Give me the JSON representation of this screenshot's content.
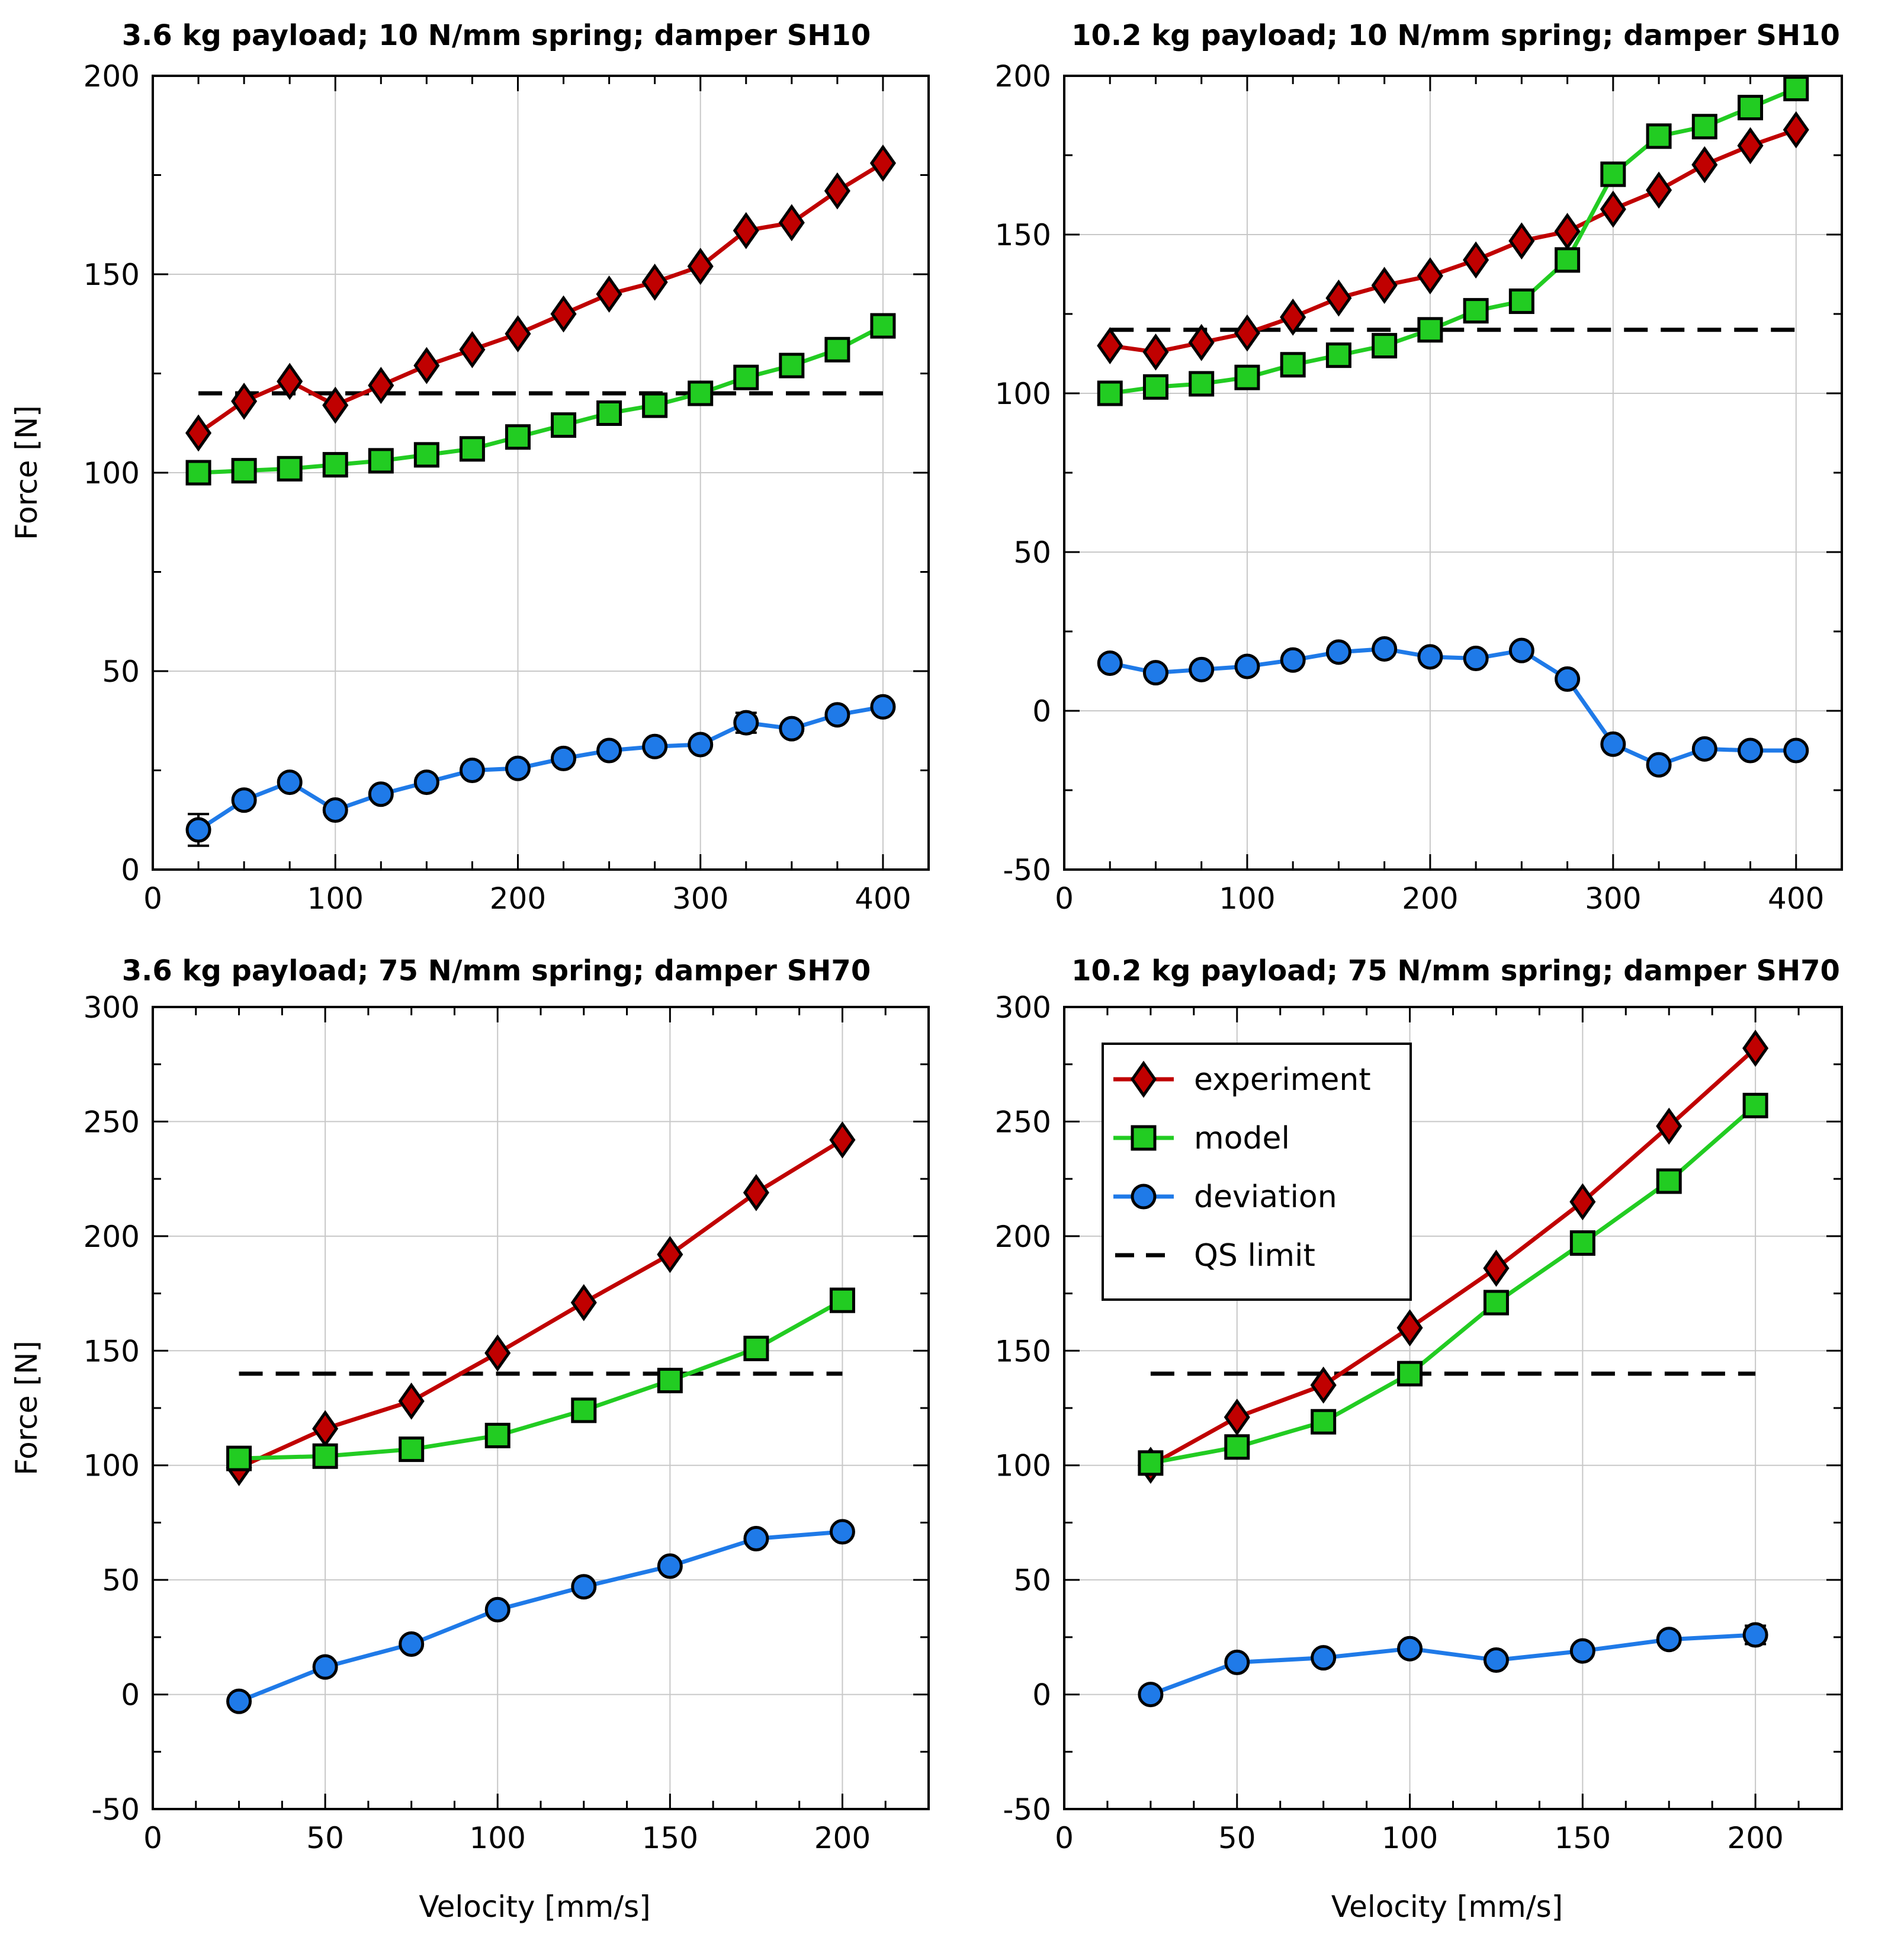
{
  "chart_data": [
    {
      "type": "line",
      "title": "3.6 kg payload; 10 N/mm spring; damper SH10",
      "xlabel": "",
      "ylabel": "Force [N]",
      "xlim": [
        0,
        425
      ],
      "ylim": [
        0,
        200
      ],
      "xticks": [
        0,
        100,
        200,
        300,
        400
      ],
      "xtick_labels": [
        "0",
        "100",
        "200",
        "300",
        "400"
      ],
      "yticks": [
        0,
        50,
        100,
        150,
        200
      ],
      "ytick_labels": [
        "0",
        "50",
        "100",
        "150",
        "200"
      ],
      "grid": true,
      "x": [
        25,
        50,
        75,
        100,
        125,
        150,
        175,
        200,
        225,
        250,
        275,
        300,
        325,
        350,
        375,
        400
      ],
      "series": [
        {
          "name": "experiment",
          "color": "#c00000",
          "marker": "diamond",
          "values": [
            110,
            118,
            123,
            117,
            122,
            127,
            131,
            135,
            140,
            145,
            148,
            152,
            161,
            163,
            171,
            178
          ]
        },
        {
          "name": "model",
          "color": "#22cc22",
          "marker": "square",
          "values": [
            100,
            100.5,
            101,
            102,
            103,
            104.5,
            106,
            109,
            112,
            115,
            117,
            120,
            124,
            127,
            131,
            137
          ]
        },
        {
          "name": "deviation",
          "color": "#1f7ae8",
          "marker": "circle",
          "values": [
            10,
            17.5,
            22,
            15,
            19,
            22,
            25,
            25.5,
            28,
            30,
            31,
            31.5,
            37,
            35.5,
            39,
            41
          ],
          "errors": [
            4,
            1,
            1,
            1,
            1,
            1,
            1,
            1,
            1,
            1,
            1,
            1,
            2.5,
            1.5,
            1,
            1
          ]
        }
      ],
      "reference_lines": [
        {
          "name": "QS limit",
          "y": 120,
          "x_range": [
            25,
            400
          ]
        }
      ]
    },
    {
      "type": "line",
      "title": "10.2 kg payload; 10 N/mm spring; damper SH10",
      "xlabel": "",
      "ylabel": "",
      "xlim": [
        0,
        425
      ],
      "ylim": [
        -50,
        200
      ],
      "xticks": [
        0,
        100,
        200,
        300,
        400
      ],
      "xtick_labels": [
        "0",
        "100",
        "200",
        "300",
        "400"
      ],
      "yticks": [
        -50,
        0,
        50,
        100,
        150,
        200
      ],
      "ytick_labels": [
        "-50",
        "0",
        "50",
        "100",
        "150",
        "200"
      ],
      "grid": true,
      "x": [
        25,
        50,
        75,
        100,
        125,
        150,
        175,
        200,
        225,
        250,
        275,
        300,
        325,
        350,
        375,
        400
      ],
      "series": [
        {
          "name": "experiment",
          "color": "#c00000",
          "marker": "diamond",
          "values": [
            115,
            113,
            116,
            119,
            124,
            130,
            134,
            137,
            142,
            148,
            151,
            158,
            164,
            172,
            178,
            183
          ]
        },
        {
          "name": "model",
          "color": "#22cc22",
          "marker": "square",
          "values": [
            100,
            102,
            103,
            105,
            109,
            112,
            115,
            120,
            126,
            129,
            142,
            169,
            181,
            184,
            190,
            196
          ]
        },
        {
          "name": "deviation",
          "color": "#1f7ae8",
          "marker": "circle",
          "values": [
            15,
            12,
            13,
            14,
            16,
            18.5,
            19.5,
            17,
            16.5,
            19,
            10,
            -10.5,
            -17,
            -12,
            -12.5,
            -12.5
          ],
          "errors": [
            2,
            1,
            1,
            1,
            1,
            1,
            1,
            1,
            1,
            1,
            1,
            1,
            1,
            1,
            1,
            1
          ]
        }
      ],
      "reference_lines": [
        {
          "name": "QS limit",
          "y": 120,
          "x_range": [
            25,
            400
          ]
        }
      ]
    },
    {
      "type": "line",
      "title": "3.6 kg payload; 75 N/mm spring; damper SH70",
      "xlabel": "Velocity [mm/s]",
      "ylabel": "Force [N]",
      "xlim": [
        0,
        225
      ],
      "ylim": [
        -50,
        300
      ],
      "xticks": [
        0,
        50,
        100,
        150,
        200
      ],
      "xtick_labels": [
        "0",
        "50",
        "100",
        "150",
        "200"
      ],
      "yticks": [
        -50,
        0,
        50,
        100,
        150,
        200,
        250,
        300
      ],
      "ytick_labels": [
        "-50",
        "0",
        "50",
        "100",
        "150",
        "200",
        "250",
        "300"
      ],
      "grid": true,
      "x": [
        25,
        50,
        75,
        100,
        125,
        150,
        175,
        200
      ],
      "series": [
        {
          "name": "experiment",
          "color": "#c00000",
          "marker": "diamond",
          "values": [
            99,
            116,
            128,
            149,
            171,
            192,
            219,
            242
          ]
        },
        {
          "name": "model",
          "color": "#22cc22",
          "marker": "square",
          "values": [
            103,
            104,
            107,
            113,
            124,
            137,
            151,
            172
          ]
        },
        {
          "name": "deviation",
          "color": "#1f7ae8",
          "marker": "circle",
          "values": [
            -3,
            12,
            22,
            37,
            47,
            56,
            68,
            71
          ],
          "errors": [
            1,
            1,
            1,
            1,
            1,
            1,
            1,
            1
          ]
        }
      ],
      "reference_lines": [
        {
          "name": "QS limit",
          "y": 140,
          "x_range": [
            25,
            200
          ]
        }
      ]
    },
    {
      "type": "line",
      "title": "10.2 kg payload; 75 N/mm spring; damper SH70",
      "xlabel": "Velocity [mm/s]",
      "ylabel": "",
      "xlim": [
        0,
        225
      ],
      "ylim": [
        -50,
        300
      ],
      "xticks": [
        0,
        50,
        100,
        150,
        200
      ],
      "xtick_labels": [
        "0",
        "50",
        "100",
        "150",
        "200"
      ],
      "yticks": [
        -50,
        0,
        50,
        100,
        150,
        200,
        250,
        300
      ],
      "ytick_labels": [
        "-50",
        "0",
        "50",
        "100",
        "150",
        "200",
        "250",
        "300"
      ],
      "grid": true,
      "legend": "top-left",
      "x": [
        25,
        50,
        75,
        100,
        125,
        150,
        175,
        200
      ],
      "series": [
        {
          "name": "experiment",
          "color": "#c00000",
          "marker": "diamond",
          "values": [
            100,
            121,
            135,
            160,
            186,
            215,
            248,
            282
          ]
        },
        {
          "name": "model",
          "color": "#22cc22",
          "marker": "square",
          "values": [
            101,
            108,
            119,
            140,
            171,
            197,
            224,
            257
          ]
        },
        {
          "name": "deviation",
          "color": "#1f7ae8",
          "marker": "circle",
          "values": [
            0,
            14,
            16,
            20,
            15,
            19,
            24,
            26
          ],
          "errors": [
            1,
            1,
            1,
            1,
            1,
            1,
            1,
            4
          ]
        }
      ],
      "reference_lines": [
        {
          "name": "QS limit",
          "y": 140,
          "x_range": [
            25,
            200
          ]
        }
      ]
    }
  ],
  "legend": {
    "entries": [
      {
        "label": "experiment",
        "color": "#c00000",
        "marker": "diamond"
      },
      {
        "label": "model",
        "color": "#22cc22",
        "marker": "square"
      },
      {
        "label": "deviation",
        "color": "#1f7ae8",
        "marker": "circle"
      },
      {
        "label": "QS limit",
        "color": "#000000",
        "marker": "dash"
      }
    ]
  }
}
